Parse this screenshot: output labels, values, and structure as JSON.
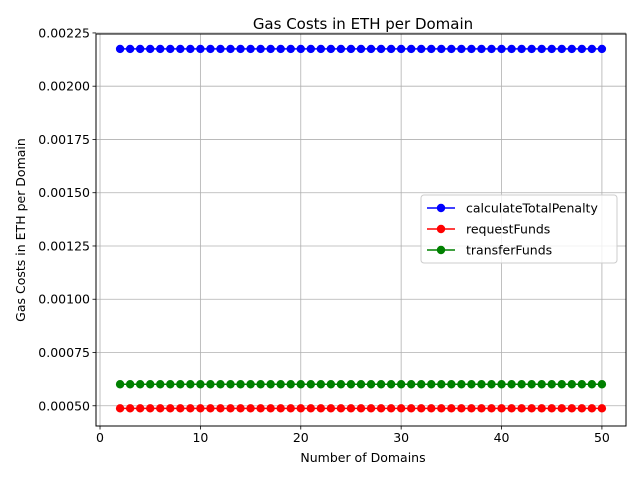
{
  "chart_data": {
    "type": "line",
    "title": "Gas Costs in ETH per Domain",
    "xlabel": "Number of Domains",
    "ylabel": "Gas Costs in ETH per Domain",
    "xlim": [
      -0.4,
      52.4
    ],
    "ylim": [
      0.000405,
      0.002245
    ],
    "xticks": [
      0,
      10,
      20,
      30,
      40,
      50
    ],
    "xtick_labels": [
      "0",
      "10",
      "20",
      "30",
      "40",
      "50"
    ],
    "yticks": [
      0.0005,
      0.00075,
      0.001,
      0.00125,
      0.0015,
      0.00175,
      0.002,
      0.00225
    ],
    "ytick_labels": [
      "0.00050",
      "0.00075",
      "0.00100",
      "0.00125",
      "0.00150",
      "0.00175",
      "0.00200",
      "0.00225"
    ],
    "grid": true,
    "legend_position": "center-right",
    "x": [
      2,
      3,
      4,
      5,
      6,
      7,
      8,
      9,
      10,
      11,
      12,
      13,
      14,
      15,
      16,
      17,
      18,
      19,
      20,
      21,
      22,
      23,
      24,
      25,
      26,
      27,
      28,
      29,
      30,
      31,
      32,
      33,
      34,
      35,
      36,
      37,
      38,
      39,
      40,
      41,
      42,
      43,
      44,
      45,
      46,
      47,
      48,
      49,
      50
    ],
    "series": [
      {
        "name": "calculateTotalPenalty",
        "color": "#0000ff",
        "marker": "circle",
        "value": 0.002175
      },
      {
        "name": "requestFunds",
        "color": "#ff0000",
        "marker": "circle",
        "value": 0.000488
      },
      {
        "name": "transferFunds",
        "color": "#008000",
        "marker": "circle",
        "value": 0.000601
      }
    ]
  }
}
